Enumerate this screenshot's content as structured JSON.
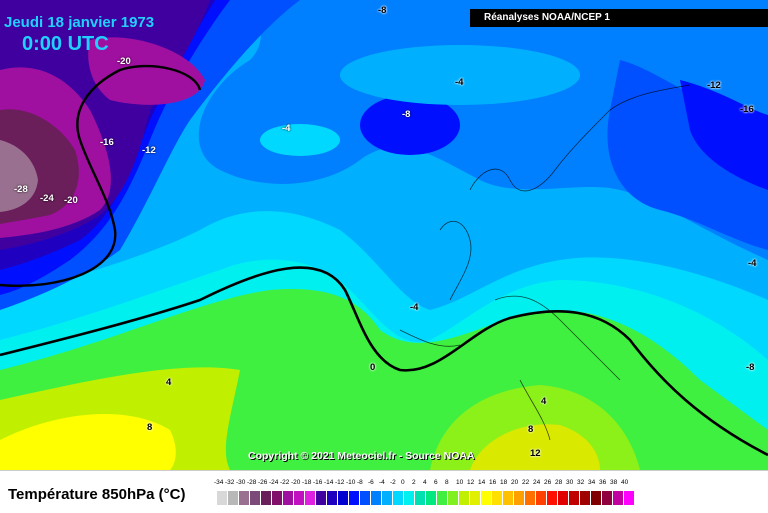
{
  "header": {
    "date": "Jeudi 18 janvier 1973",
    "time": "0:00 UTC",
    "source": "Réanalyses NOAA/NCEP 1",
    "copyright": "Copyright © 2021 Meteociel.fr - Source NOAA"
  },
  "legend": {
    "title": "Température 850hPa (°C)",
    "ticks": [
      "-34",
      "-32",
      "-30",
      "-28",
      "-26",
      "-24",
      "-22",
      "-20",
      "-18",
      "-16",
      "-14",
      "-12",
      "-10",
      "-8",
      "-6",
      "-4",
      "-2",
      "0",
      "2",
      "4",
      "6",
      "8",
      "10",
      "12",
      "14",
      "16",
      "18",
      "20",
      "22",
      "24",
      "26",
      "28",
      "30",
      "32",
      "34",
      "36",
      "38",
      "40"
    ],
    "colors": [
      "#d8d8d8",
      "#b8b8b8",
      "#9a7090",
      "#7c4a78",
      "#6a1e5a",
      "#80106a",
      "#a010a0",
      "#c010c0",
      "#e020e0",
      "#4000a0",
      "#2000c0",
      "#0000d0",
      "#0010ff",
      "#0050ff",
      "#0080ff",
      "#00b0ff",
      "#00d8ff",
      "#00f0f0",
      "#00e0b0",
      "#00e880",
      "#40f040",
      "#80f020",
      "#c0f000",
      "#e0f000",
      "#ffff00",
      "#ffe000",
      "#ffc000",
      "#ffa000",
      "#ff7000",
      "#ff4000",
      "#ff1000",
      "#e00000",
      "#c00000",
      "#a00000",
      "#800000",
      "#900040",
      "#c000a0",
      "#ff00ff"
    ]
  },
  "isotherm_labels": [
    {
      "text": "-8"
    },
    {
      "text": "-20"
    },
    {
      "text": "-4"
    },
    {
      "text": "-8"
    },
    {
      "text": "-4"
    },
    {
      "text": "-16"
    },
    {
      "text": "-12"
    },
    {
      "text": "-28"
    },
    {
      "text": "-24"
    },
    {
      "text": "-20"
    },
    {
      "text": "-12"
    },
    {
      "text": "-16"
    },
    {
      "text": "-4"
    },
    {
      "text": "-4"
    },
    {
      "text": "-8"
    },
    {
      "text": "0"
    },
    {
      "text": "4"
    },
    {
      "text": "8"
    },
    {
      "text": "4"
    },
    {
      "text": "8"
    },
    {
      "text": "12"
    }
  ]
}
